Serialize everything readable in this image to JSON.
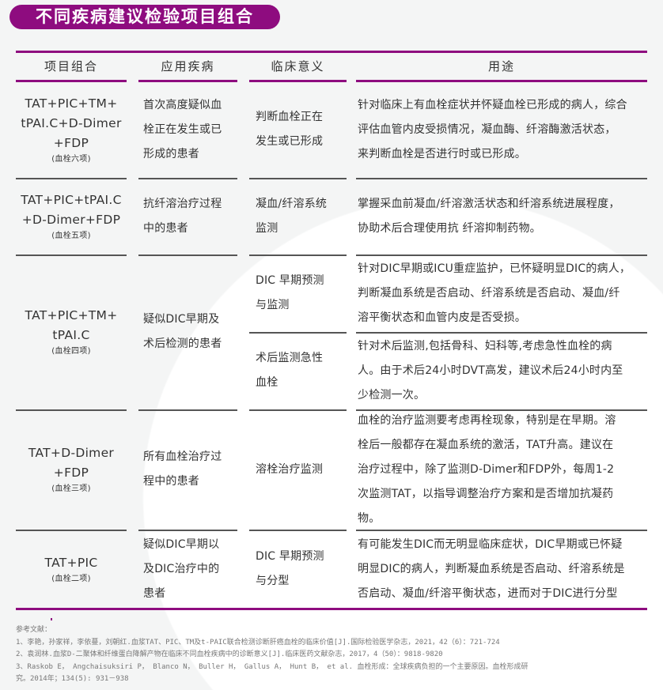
{
  "title": "不同疾病建议检验项目组合",
  "colors": {
    "accent": "#8e0c7f"
  },
  "headers": [
    "项目组合",
    "应用疾病",
    "临床意义",
    "用途"
  ],
  "rows": [
    {
      "combo": [
        "TAT+PIC+TM+",
        "tPAI.C+D-Dimer",
        "+FDP"
      ],
      "combo_sub": "(血栓六项)",
      "disease": [
        "首次高度疑似血",
        "栓正在发生或已",
        "形成的患者"
      ],
      "subrows": [
        {
          "meaning": [
            "判断血栓正在",
            "发生或已形成"
          ],
          "use": [
            "针对临床上有血栓症状并怀疑血栓已形成的病人，综合",
            "评估血管内皮受损情况，凝血酶、纤溶酶激活状态，",
            "来判断血栓是否进行时或已形成。"
          ]
        }
      ]
    },
    {
      "combo": [
        "TAT+PIC+tPAI.C",
        "+D-Dimer+FDP"
      ],
      "combo_sub": "(血栓五项)",
      "disease": [
        "抗纤溶治疗过程",
        "中的患者"
      ],
      "subrows": [
        {
          "meaning": [
            "凝血/纤溶系统",
            "监测"
          ],
          "use": [
            "掌握采血前凝血/纤溶激活状态和纤溶系统进展程度，",
            "协助术后合理使用抗 纤溶抑制药物。"
          ]
        }
      ]
    },
    {
      "combo": [
        "TAT+PIC+TM+",
        "tPAI.C"
      ],
      "combo_sub": "(血栓四项)",
      "disease": [
        "疑似DIC早期及",
        "术后检测的患者"
      ],
      "subrows": [
        {
          "meaning": [
            "DIC 早期预测",
            "与监测"
          ],
          "use": [
            "针对DIC早期或ICU重症监护，已怀疑明显DIC的病人，",
            "判断凝血系统是否启动、纤溶系统是否启动、凝血/纤",
            "溶平衡状态和血管内皮是否受损。"
          ]
        },
        {
          "meaning": [
            "术后监测急性",
            "血栓"
          ],
          "use": [
            "针对术后监测,包括骨科、妇科等,考虑急性血栓的病",
            "人。由于术后24小时DVT高发，建议术后24小时内至",
            "少检测一次。"
          ]
        }
      ]
    },
    {
      "combo": [
        "TAT+D-Dimer",
        "+FDP"
      ],
      "combo_sub": "(血栓三项)",
      "disease": [
        "所有血栓治疗过",
        "程中的患者"
      ],
      "subrows": [
        {
          "meaning": [
            "溶栓治疗监测"
          ],
          "use": [
            "血栓的治疗监测要考虑再栓现象，特别是在早期。溶",
            "栓后一般都存在凝血系统的激活，TAT升高。建议在",
            "治疗过程中，除了监测D-Dimer和FDP外，每周1-2",
            "次监测TAT，以指导调整治疗方案和是否增加抗凝药",
            "物。"
          ]
        }
      ]
    },
    {
      "combo": [
        "TAT+PIC"
      ],
      "combo_sub": "(血栓二项)",
      "disease": [
        "疑似DIC早期以",
        "及DIC治疗中的",
        "患者"
      ],
      "subrows": [
        {
          "meaning": [
            "DIC 早期预测",
            "与分型"
          ],
          "use": [
            "有可能发生DIC而无明显临床症状，DIC早期或已怀疑",
            "明显DIC的病人，判断凝血系统是否启动、纤溶系统是",
            "否启动、凝血/纤溶平衡状态，进而对于DIC进行分型"
          ]
        }
      ]
    }
  ],
  "references": {
    "heading": "参考文献：",
    "items": [
      "1、李艳，孙家祥，李依蔓，刘朝红.血浆TAT、PIC、TM及t-PAIC联合检测诊断肝癌血栓的临床价值[J].国际检验医学杂志，2021，42（6）：721-724",
      "2、袁润林.血浆D-二聚体和纤维蛋白降解产物在临床不同血栓疾病中的诊断意义[J].临床医药文献杂志，2017，4（50）：9818-9820",
      "3、Raskob E， Angchaisuksiri P， Blanco N， Buller H， Gallus A， Hunt B， et al. 血栓形成：全球疾病负担的一个主要原因。血栓形成研",
      "究。2014年；134(5): 931－938"
    ]
  }
}
